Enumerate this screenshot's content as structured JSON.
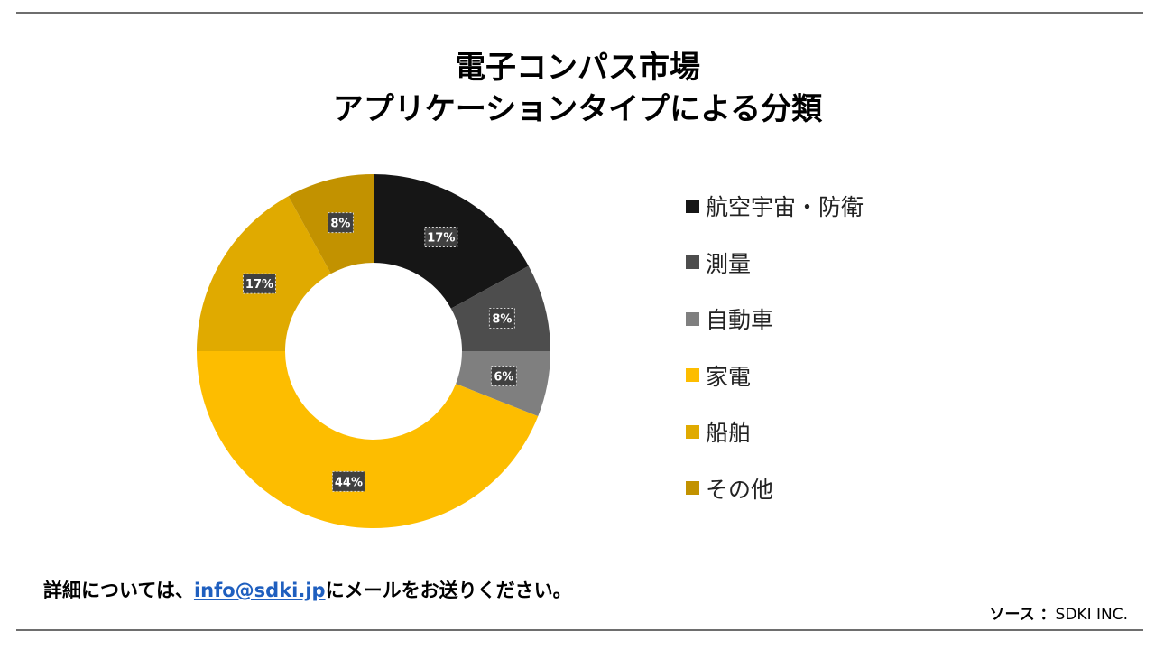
{
  "title": {
    "line1": "電子コンパス市場",
    "line2": "アプリケーションタイプによる分類"
  },
  "chart_data": {
    "type": "pie",
    "variant": "donut",
    "categories": [
      "航空宇宙・防衛",
      "測量",
      "自動車",
      "家電",
      "船舶",
      "その他"
    ],
    "values": [
      17,
      8,
      6,
      44,
      17,
      8
    ],
    "labels": [
      "17%",
      "8%",
      "6%",
      "44%",
      "17%",
      "8%"
    ],
    "colors": [
      "#161616",
      "#4d4d4d",
      "#7f7f7f",
      "#fdbd00",
      "#e0aa00",
      "#c29200"
    ],
    "label_box_color": "#404040",
    "legend_position": "right"
  },
  "footer": {
    "prefix": "詳細については、",
    "email": "info@sdki.jp",
    "suffix": "にメールをお送りください。"
  },
  "source": {
    "label": "ソース ：",
    "value": "SDKI INC."
  }
}
